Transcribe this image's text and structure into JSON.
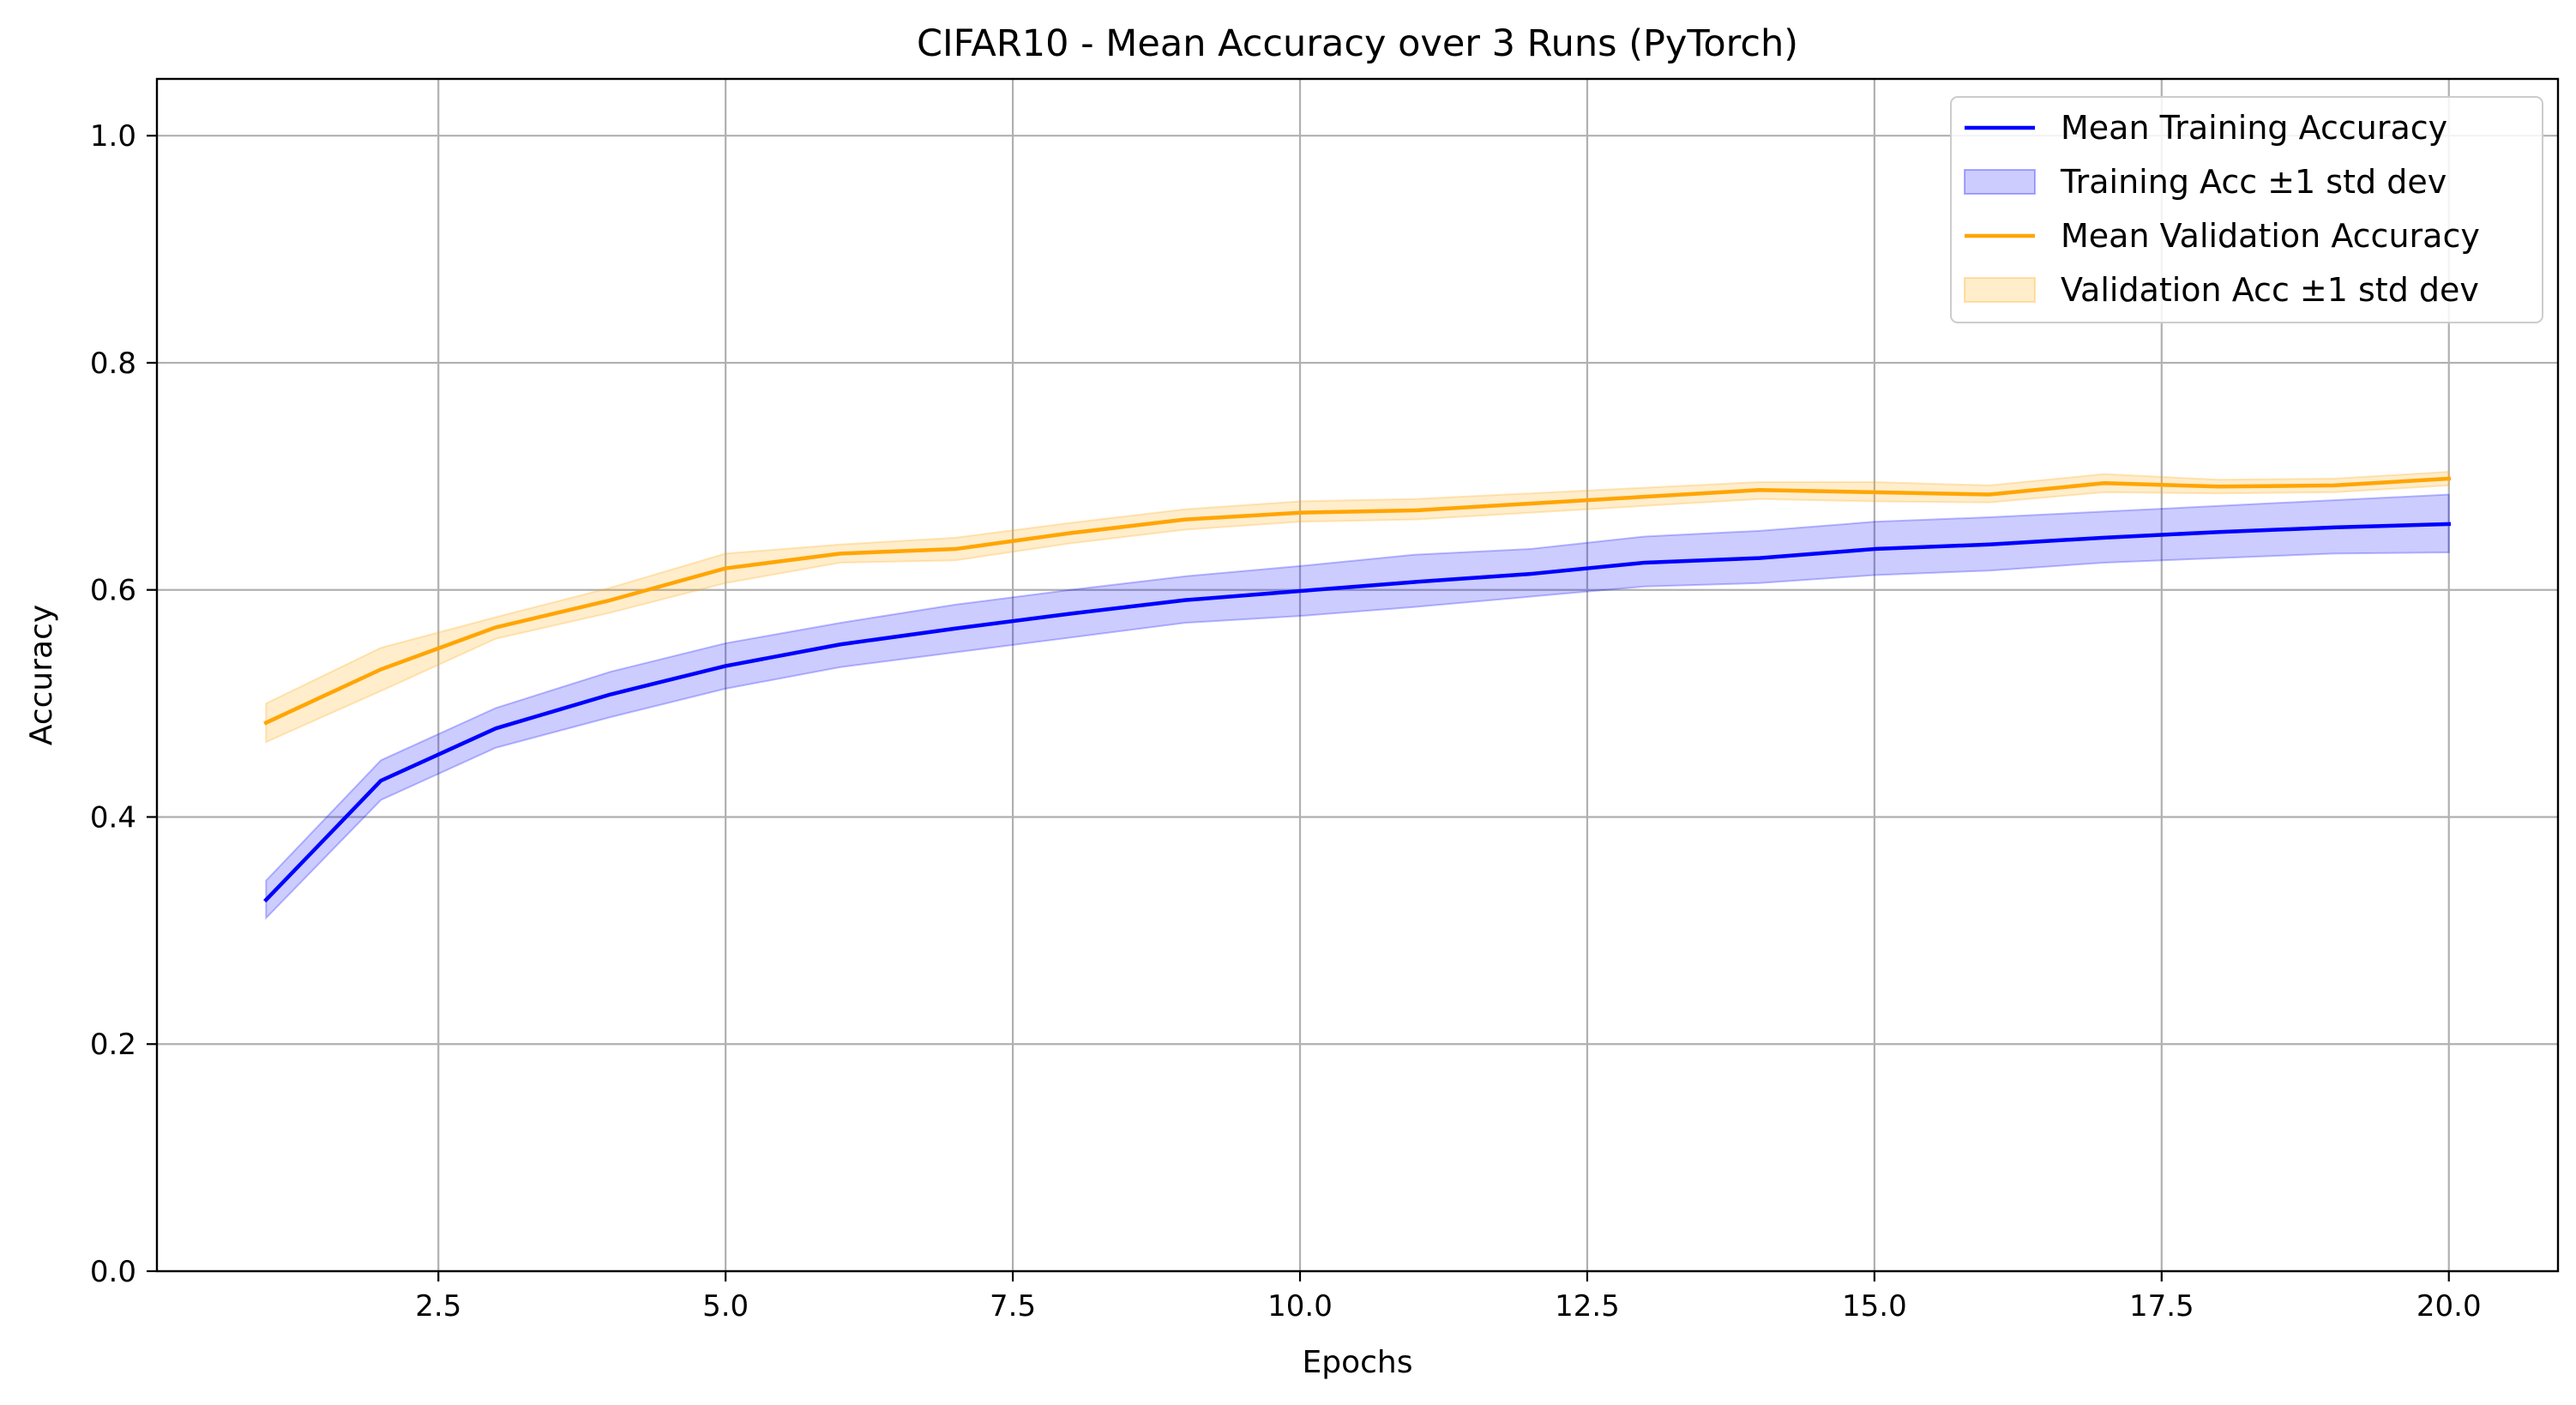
{
  "chart_data": {
    "type": "line",
    "title": "CIFAR10 - Mean Accuracy over 3 Runs (PyTorch)",
    "xlabel": "Epochs",
    "ylabel": "Accuracy",
    "xlim": [
      0.05,
      20.95
    ],
    "ylim": [
      0.0,
      1.05
    ],
    "grid": true,
    "legend_position": "top-right",
    "x_ticks": [
      2.5,
      5.0,
      7.5,
      10.0,
      12.5,
      15.0,
      17.5,
      20.0
    ],
    "x_tick_labels": [
      "2.5",
      "5.0",
      "7.5",
      "10.0",
      "12.5",
      "15.0",
      "17.5",
      "20.0"
    ],
    "y_ticks": [
      0.0,
      0.2,
      0.4,
      0.6,
      0.8,
      1.0
    ],
    "y_tick_labels": [
      "0.0",
      "0.2",
      "0.4",
      "0.6",
      "0.8",
      "1.0"
    ],
    "x": [
      1,
      2,
      3,
      4,
      5,
      6,
      7,
      8,
      9,
      10,
      11,
      12,
      13,
      14,
      15,
      16,
      17,
      18,
      19,
      20
    ],
    "series": [
      {
        "name": "Mean Training Accuracy",
        "color": "#0000ff",
        "values": [
          0.327,
          0.432,
          0.478,
          0.508,
          0.533,
          0.552,
          0.566,
          0.579,
          0.591,
          0.599,
          0.607,
          0.614,
          0.624,
          0.628,
          0.636,
          0.64,
          0.646,
          0.651,
          0.655,
          0.658
        ],
        "band_name": "Training Acc ±1 std dev",
        "band_color": "#0000ff",
        "band_lower": [
          0.311,
          0.415,
          0.461,
          0.488,
          0.513,
          0.532,
          0.545,
          0.558,
          0.571,
          0.577,
          0.585,
          0.594,
          0.603,
          0.606,
          0.613,
          0.617,
          0.624,
          0.628,
          0.632,
          0.633
        ],
        "band_upper": [
          0.344,
          0.45,
          0.496,
          0.528,
          0.553,
          0.571,
          0.587,
          0.6,
          0.612,
          0.621,
          0.631,
          0.636,
          0.647,
          0.652,
          0.66,
          0.664,
          0.669,
          0.674,
          0.679,
          0.684
        ]
      },
      {
        "name": "Mean Validation Accuracy",
        "color": "#ffa500",
        "values": [
          0.483,
          0.53,
          0.567,
          0.591,
          0.619,
          0.632,
          0.636,
          0.65,
          0.662,
          0.668,
          0.67,
          0.676,
          0.682,
          0.688,
          0.686,
          0.684,
          0.694,
          0.691,
          0.692,
          0.698
        ],
        "band_name": "Validation Acc ±1 std dev",
        "band_color": "#ffa500",
        "band_lower": [
          0.466,
          0.511,
          0.557,
          0.58,
          0.606,
          0.624,
          0.626,
          0.641,
          0.653,
          0.66,
          0.662,
          0.668,
          0.674,
          0.68,
          0.678,
          0.677,
          0.686,
          0.685,
          0.686,
          0.692
        ],
        "band_upper": [
          0.5,
          0.549,
          0.576,
          0.602,
          0.632,
          0.64,
          0.646,
          0.659,
          0.671,
          0.678,
          0.68,
          0.685,
          0.69,
          0.695,
          0.695,
          0.692,
          0.702,
          0.697,
          0.698,
          0.704
        ]
      }
    ],
    "legend": [
      {
        "label": "Mean Training Accuracy",
        "kind": "line",
        "color": "#0000ff"
      },
      {
        "label": "Training Acc ±1 std dev",
        "kind": "band",
        "color": "#0000ff"
      },
      {
        "label": "Mean Validation Accuracy",
        "kind": "line",
        "color": "#ffa500"
      },
      {
        "label": "Validation Acc ±1 std dev",
        "kind": "band",
        "color": "#ffa500"
      }
    ]
  }
}
